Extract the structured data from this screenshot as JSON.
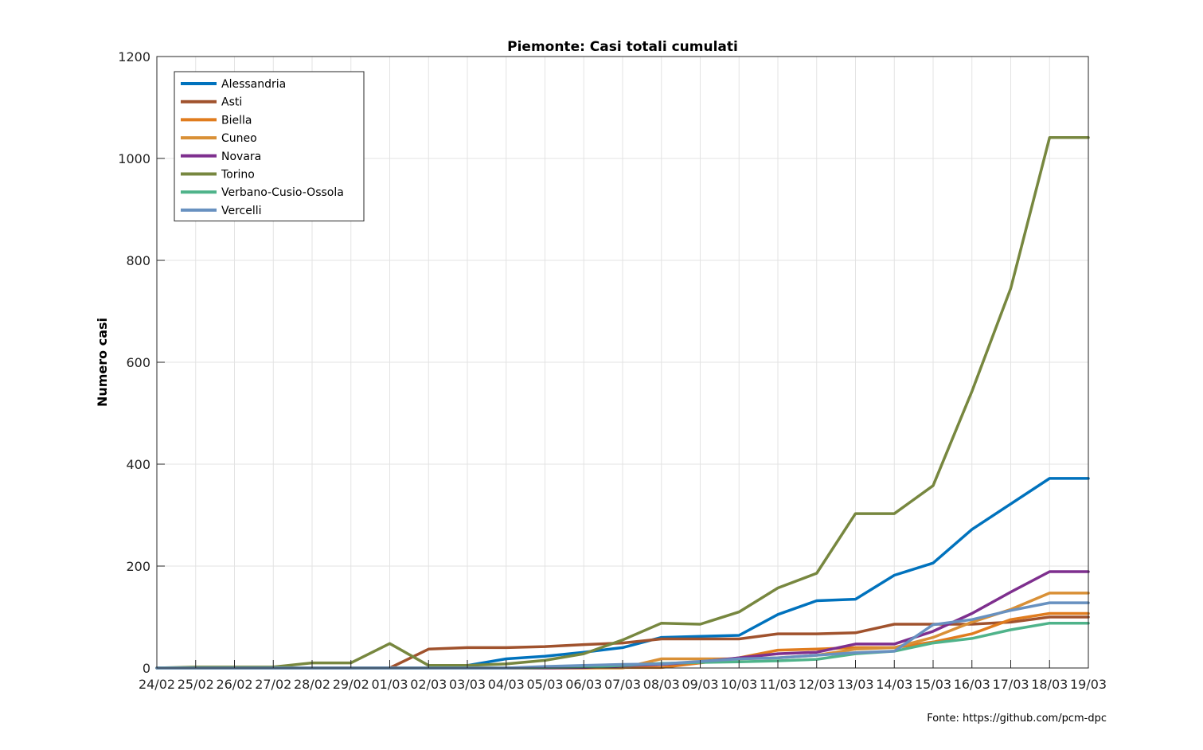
{
  "chart_data": {
    "type": "line",
    "title": "Piemonte: Casi totali cumulati",
    "xlabel": "",
    "ylabel": "Numero casi",
    "ylim": [
      0,
      1200
    ],
    "yticks": [
      0,
      200,
      400,
      600,
      800,
      1000,
      1200
    ],
    "grid": true,
    "legend_position": "top-left",
    "categories": [
      "24/02",
      "25/02",
      "26/02",
      "27/02",
      "28/02",
      "29/02",
      "01/03",
      "02/03",
      "03/03",
      "04/03",
      "05/03",
      "06/03",
      "07/03",
      "08/03",
      "09/03",
      "10/03",
      "11/03",
      "12/03",
      "13/03",
      "14/03",
      "15/03",
      "16/03",
      "17/03",
      "18/03",
      "19/03"
    ],
    "series": [
      {
        "name": "Alessandria",
        "color": "#0072bd",
        "values": [
          0,
          0,
          0,
          0,
          0,
          0,
          0,
          0,
          5,
          18,
          23,
          31,
          40,
          60,
          62,
          64,
          105,
          132,
          135,
          182,
          206,
          272,
          322,
          372,
          372
        ]
      },
      {
        "name": "Asti",
        "color": "#a0522d",
        "values": [
          0,
          0,
          0,
          0,
          0,
          0,
          0,
          37,
          40,
          40,
          42,
          46,
          49,
          57,
          57,
          57,
          67,
          67,
          69,
          86,
          86,
          86,
          90,
          100,
          100
        ]
      },
      {
        "name": "Biella",
        "color": "#e07c1e",
        "values": [
          0,
          0,
          0,
          0,
          0,
          0,
          0,
          0,
          0,
          0,
          0,
          0,
          1,
          1,
          10,
          20,
          35,
          37,
          40,
          40,
          51,
          67,
          95,
          107,
          107
        ]
      },
      {
        "name": "Cuneo",
        "color": "#d99036",
        "values": [
          0,
          0,
          0,
          0,
          0,
          0,
          0,
          0,
          0,
          0,
          0,
          0,
          0,
          18,
          18,
          18,
          20,
          25,
          37,
          40,
          60,
          90,
          115,
          147,
          147
        ]
      },
      {
        "name": "Novara",
        "color": "#7e2f8e",
        "values": [
          0,
          0,
          0,
          0,
          0,
          0,
          0,
          0,
          0,
          0,
          0,
          1,
          4,
          7,
          12,
          20,
          28,
          31,
          47,
          47,
          72,
          107,
          149,
          189,
          189
        ]
      },
      {
        "name": "Torino",
        "color": "#77873f",
        "values": [
          0,
          2,
          2,
          2,
          10,
          10,
          48,
          5,
          5,
          8,
          15,
          28,
          55,
          88,
          86,
          110,
          157,
          186,
          303,
          303,
          358,
          543,
          745,
          1041,
          1041
        ]
      },
      {
        "name": "Verbano-Cusio-Ossola",
        "color": "#4fb38a",
        "values": [
          0,
          0,
          0,
          0,
          0,
          0,
          0,
          0,
          0,
          0,
          1,
          2,
          5,
          9,
          11,
          12,
          14,
          17,
          28,
          33,
          49,
          58,
          75,
          88,
          88
        ]
      },
      {
        "name": "Vercelli",
        "color": "#6891c0",
        "values": [
          0,
          0,
          0,
          0,
          0,
          0,
          0,
          0,
          0,
          0,
          3,
          5,
          7,
          8,
          13,
          18,
          20,
          25,
          30,
          33,
          85,
          95,
          113,
          128,
          128
        ]
      }
    ]
  },
  "source_note": "Fonte: https://github.com/pcm-dpc"
}
